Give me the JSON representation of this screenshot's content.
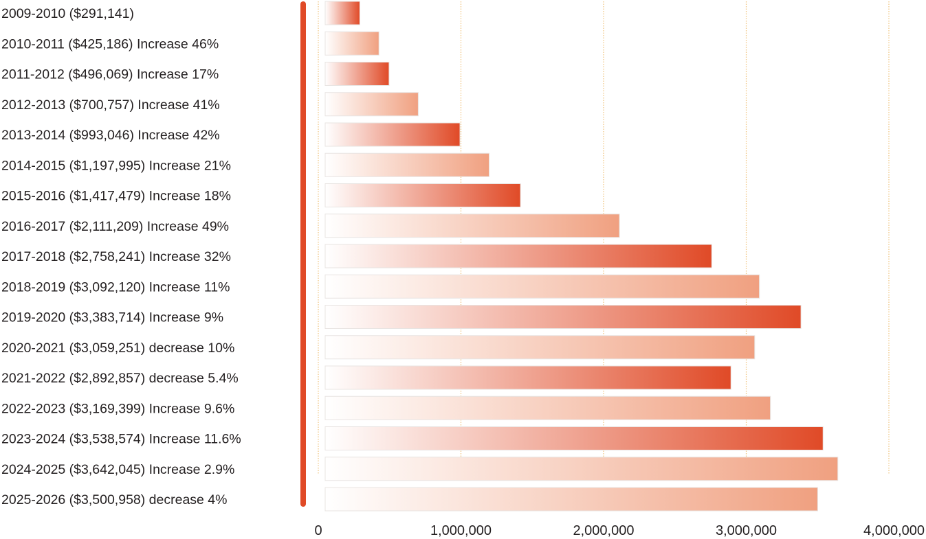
{
  "chart_data": {
    "type": "bar",
    "orientation": "horizontal",
    "title": "",
    "xlabel": "",
    "ylabel": "",
    "xlim": [
      0,
      4000000
    ],
    "x_ticks": [
      0,
      1000000,
      2000000,
      3000000,
      4000000
    ],
    "x_tick_labels": [
      "0",
      "1,000,000",
      "2,000,000",
      "3,000,000",
      "4,000,000"
    ],
    "grid": "vertical dotted",
    "categories": [
      "2009-2010 ($291,141)",
      "2010-2011 ($425,186) Increase 46%",
      "2011-2012 ($496,069) Increase 17%",
      "2012-2013 ($700,757) Increase 41%",
      "2013-2014 ($993,046) Increase 42%",
      "2014-2015 ($1,197,995) Increase 21%",
      "2015-2016 ($1,417,479) Increase 18%",
      "2016-2017 ($2,111,209) Increase 49%",
      "2017-2018 ($2,758,241) Increase 32%",
      "2018-2019 ($3,092,120) Increase 11%",
      "2019-2020 ($3,383,714) Increase 9%",
      "2020-2021 ($3,059,251) decrease 10%",
      "2021-2022 ($2,892,857) decrease 5.4%",
      "2022-2023 ($3,169,399) Increase 9.6%",
      "2023-2024 ($3,538,574) Increase 11.6%",
      "2024-2025 ($3,642,045) Increase 2.9%",
      "2025-2026 ($3,500,958) decrease 4%"
    ],
    "values": [
      291141,
      425186,
      496069,
      700757,
      993046,
      1197995,
      1417479,
      2111209,
      2758241,
      3092120,
      3383714,
      3059251,
      2892857,
      3169399,
      3538574,
      3642045,
      3500958
    ],
    "bar_styles": [
      "dark",
      "light",
      "dark",
      "light",
      "dark",
      "light",
      "dark",
      "light",
      "dark",
      "light",
      "dark",
      "light",
      "dark",
      "light",
      "dark",
      "light",
      "light"
    ],
    "colors": {
      "dark_end": "#e04a27",
      "light_end": "#f0a080",
      "start": "#ffffff",
      "axis_bar": "#e04a27",
      "grid": "#f0c27a",
      "text": "#231f20"
    }
  }
}
